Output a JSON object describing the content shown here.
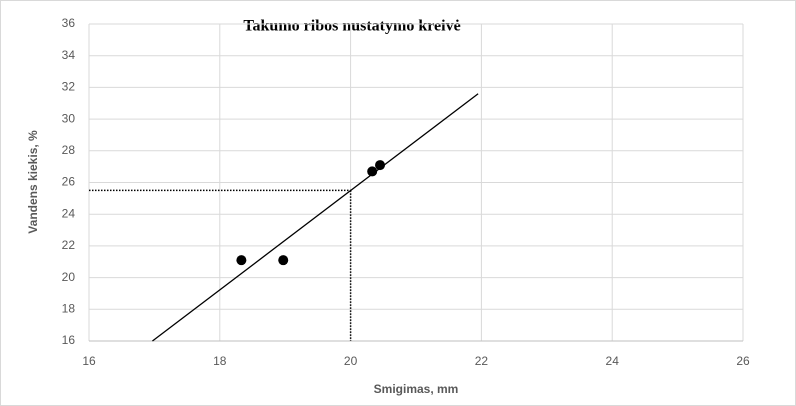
{
  "chart_data": {
    "type": "scatter",
    "title": "Takumo ribos nustatymo kreivė",
    "xlabel": "Smigimas, mm",
    "ylabel": "Vandens kiekis, %",
    "x": [
      18.33,
      18.97,
      20.33,
      20.45
    ],
    "y": [
      21.1,
      21.1,
      26.7,
      27.1
    ],
    "color": "#000000",
    "trendline": {
      "x": [
        16.97,
        21.95
      ],
      "y": [
        16,
        31.6
      ]
    },
    "reference": {
      "x": 20,
      "y": 25.5
    },
    "xlim": [
      16,
      26
    ],
    "xticks": [
      16,
      18,
      20,
      22,
      24,
      26
    ],
    "ylim": [
      16,
      36
    ],
    "yticks": [
      16,
      18,
      20,
      22,
      24,
      26,
      28,
      30,
      32,
      34,
      36
    ],
    "grid": true
  }
}
